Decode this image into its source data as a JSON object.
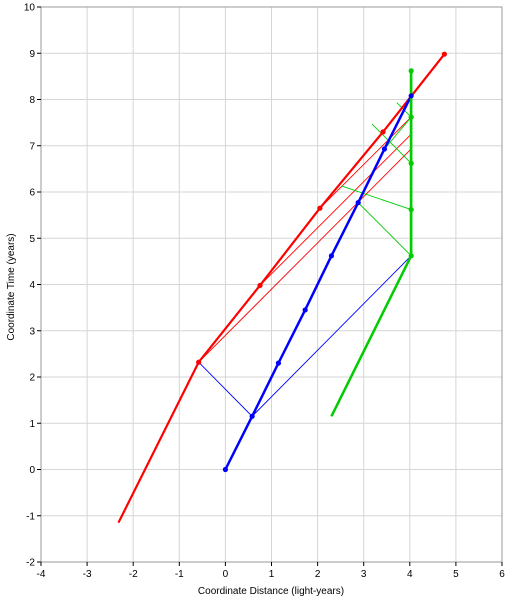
{
  "chart_data": {
    "type": "line",
    "xlabel": "Coordinate Distance (light-years)",
    "ylabel": "Coordinate Time (years)",
    "xlim": [
      -4,
      6
    ],
    "ylim": [
      -2,
      10
    ],
    "x_ticks": [
      -4,
      -3,
      -2,
      -1,
      0,
      1,
      2,
      3,
      4,
      5,
      6
    ],
    "y_ticks": [
      -2,
      -1,
      0,
      1,
      2,
      3,
      4,
      5,
      6,
      7,
      8,
      9,
      10
    ],
    "grid": true,
    "series": [
      {
        "color": "#ff0000",
        "width": 2.2,
        "points": [
          [
            -2.32,
            -1.15
          ],
          [
            -0.58,
            2.32
          ],
          [
            0.75,
            3.98
          ],
          [
            2.05,
            5.65
          ],
          [
            3.42,
            7.3
          ],
          [
            4.75,
            8.98
          ]
        ],
        "markers": [
          [
            -0.58,
            2.32
          ],
          [
            0.75,
            3.98
          ],
          [
            2.05,
            5.65
          ],
          [
            3.42,
            7.3
          ],
          [
            4.75,
            8.98
          ]
        ]
      },
      {
        "color": "#0000ff",
        "width": 2.5,
        "points": [
          [
            0,
            0
          ],
          [
            0.58,
            1.15
          ],
          [
            1.15,
            2.3
          ],
          [
            1.73,
            3.45
          ],
          [
            2.3,
            4.62
          ],
          [
            2.88,
            5.77
          ],
          [
            3.45,
            6.93
          ],
          [
            4.03,
            8.08
          ]
        ],
        "markers": [
          [
            0,
            0
          ],
          [
            0.58,
            1.15
          ],
          [
            1.15,
            2.3
          ],
          [
            1.73,
            3.45
          ],
          [
            2.3,
            4.62
          ],
          [
            2.88,
            5.77
          ],
          [
            3.45,
            6.93
          ],
          [
            4.03,
            8.08
          ]
        ]
      },
      {
        "color": "#00cc00",
        "width": 2.5,
        "points": [
          [
            2.3,
            1.15
          ],
          [
            4.03,
            4.62
          ],
          [
            4.03,
            8.62
          ]
        ],
        "markers": [
          [
            4.03,
            4.62
          ],
          [
            4.03,
            5.62
          ],
          [
            4.03,
            6.62
          ],
          [
            4.03,
            7.62
          ],
          [
            4.03,
            8.62
          ]
        ]
      }
    ],
    "light_signals": [
      {
        "color": "#0000ff",
        "points": [
          [
            0.58,
            1.15
          ],
          [
            -0.58,
            2.32
          ],
          [
            0.58,
            1.15
          ],
          [
            4.03,
            4.62
          ]
        ]
      },
      {
        "color": "#ff0000",
        "points": [
          [
            -0.58,
            2.32
          ],
          [
            4.03,
            6.93
          ]
        ]
      },
      {
        "color": "#ff0000",
        "points": [
          [
            0.75,
            3.98
          ],
          [
            4.03,
            7.25
          ]
        ]
      },
      {
        "color": "#ff0000",
        "points": [
          [
            2.05,
            5.65
          ],
          [
            4.03,
            7.62
          ]
        ]
      },
      {
        "color": "#00cc00",
        "points": [
          [
            4.03,
            4.62
          ],
          [
            2.88,
            5.77
          ]
        ]
      },
      {
        "color": "#00cc00",
        "points": [
          [
            4.03,
            5.62
          ],
          [
            2.52,
            6.13
          ]
        ]
      },
      {
        "color": "#00cc00",
        "points": [
          [
            4.03,
            6.62
          ],
          [
            3.18,
            7.47
          ]
        ]
      },
      {
        "color": "#00cc00",
        "points": [
          [
            4.03,
            7.62
          ],
          [
            3.45,
            6.93
          ]
        ]
      },
      {
        "color": "#00cc00",
        "points": [
          [
            4.03,
            7.62
          ],
          [
            3.72,
            7.93
          ]
        ]
      }
    ]
  }
}
